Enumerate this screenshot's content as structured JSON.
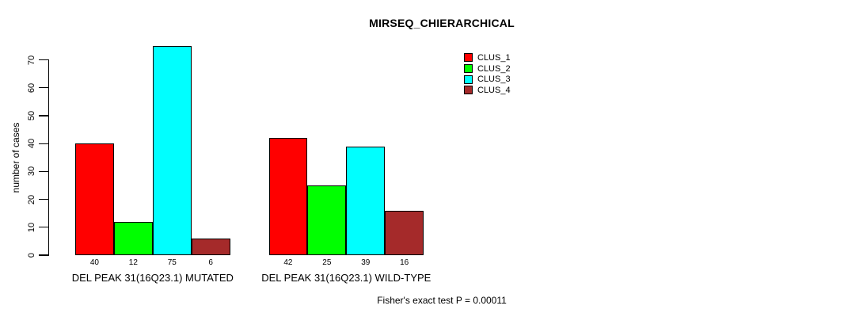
{
  "chart_data": {
    "type": "bar",
    "title": "MIRSEQ_CHIERARCHICAL",
    "ylabel": "number of cases",
    "xlabel": "",
    "ylim": [
      0,
      70
    ],
    "yticks": [
      0,
      10,
      20,
      30,
      40,
      50,
      60,
      70
    ],
    "categories": [
      "DEL PEAK 31(16Q23.1) MUTATED",
      "DEL PEAK 31(16Q23.1) WILD-TYPE"
    ],
    "series": [
      {
        "name": "CLUS_1",
        "color": "#ff0000",
        "values": [
          40,
          42
        ]
      },
      {
        "name": "CLUS_2",
        "color": "#00ff00",
        "values": [
          12,
          25
        ]
      },
      {
        "name": "CLUS_3",
        "color": "#00ffff",
        "values": [
          75,
          39
        ]
      },
      {
        "name": "CLUS_4",
        "color": "#a52a2a",
        "values": [
          6,
          16
        ]
      }
    ],
    "bar_value_labels": [
      [
        40,
        12,
        75,
        6
      ],
      [
        42,
        25,
        39,
        16
      ]
    ],
    "annotation": "Fisher's exact test P = 0.00011",
    "legend_position": "top-right",
    "legend_entries": [
      "CLUS_1",
      "CLUS_2",
      "CLUS_3",
      "CLUS_4"
    ],
    "grid": false,
    "background_color": "#ffffff",
    "bar_border_color": "#000000"
  }
}
